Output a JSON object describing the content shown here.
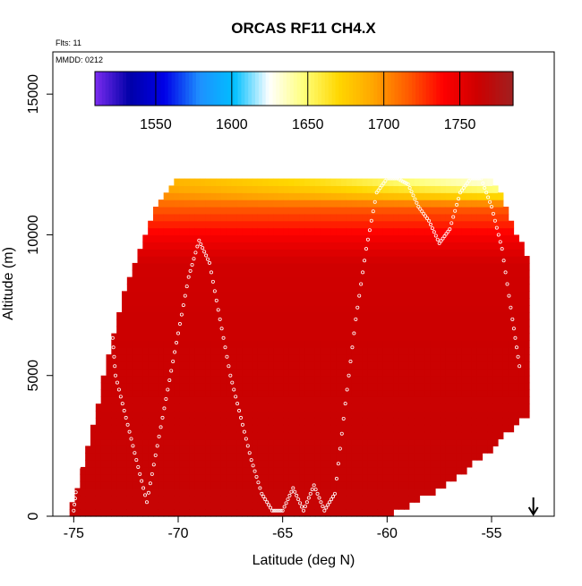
{
  "chart_data": {
    "type": "heatmap",
    "title": "ORCAS RF11 CH4.X",
    "annotations": {
      "flights": "Flts: 11",
      "date": "MMDD: 0212"
    },
    "xlabel": "Latitude (deg N)",
    "ylabel": "Altitude (m)",
    "xlim": [
      -76,
      -52
    ],
    "ylim": [
      0,
      16500
    ],
    "x_ticks": [
      -75,
      -70,
      -65,
      -60,
      -55
    ],
    "x_tick_labels": [
      "-75",
      "-70",
      "-65",
      "-60",
      "-55"
    ],
    "y_ticks": [
      0,
      5000,
      10000,
      15000
    ],
    "y_tick_labels": [
      "0",
      "5000",
      "10000",
      "15000"
    ],
    "colorbar": {
      "range": [
        1510,
        1785
      ],
      "ticks": [
        1550,
        1600,
        1650,
        1700,
        1750
      ],
      "tick_labels": [
        "1550",
        "1600",
        "1650",
        "1700",
        "1750"
      ],
      "colors": [
        "#7b2cf0",
        "#0000a8",
        "#0000e8",
        "#1e90ff",
        "#00bfff",
        "#ffffff",
        "#ffff7a",
        "#ffd700",
        "#ffa500",
        "#ff5a00",
        "#ff0000",
        "#cc0000",
        "#a02020"
      ]
    },
    "grid": false,
    "legend": "colorbar top",
    "direction_arrow": {
      "latitude": -53,
      "direction": "down"
    },
    "domain": {
      "lat": [
        -75.2,
        -74.5,
        -74,
        -73.5,
        -73,
        -72.5,
        -72,
        -71.5,
        -71,
        -70.5,
        -70,
        -65,
        -60,
        -57,
        -55,
        -54.3,
        -53.8,
        -53.2
      ],
      "bottom": [
        0,
        0,
        0,
        0,
        0,
        0,
        0,
        0,
        0,
        0,
        0,
        0,
        0,
        1200,
        2400,
        2900,
        3300,
        3600
      ],
      "top": [
        200,
        1800,
        3500,
        5200,
        6800,
        8200,
        9200,
        10200,
        11000,
        11700,
        12100,
        12100,
        12100,
        12100,
        12000,
        11000,
        10000,
        9000
      ]
    },
    "vertical_profile": {
      "altitude": [
        0,
        7000,
        9000,
        9500,
        10000,
        10500,
        11000,
        11500,
        12000
      ],
      "value_at_south": [
        1765,
        1762,
        1760,
        1752,
        1742,
        1728,
        1715,
        1705,
        1700
      ],
      "value_at_north": [
        1765,
        1762,
        1760,
        1752,
        1742,
        1728,
        1715,
        1660,
        1630
      ]
    },
    "flight_track": {
      "lat": [
        -75,
        -74.8,
        -74.5,
        -74.3,
        -74,
        -73.8,
        -73.5,
        -73.2,
        -73,
        -72.5,
        -72,
        -71.5,
        -71,
        -70.5,
        -70,
        -69.5,
        -69,
        -68.5,
        -68,
        -67.5,
        -67,
        -66.5,
        -66,
        -65.5,
        -65,
        -64.5,
        -64,
        -63.5,
        -63,
        -62.5,
        -62,
        -61.5,
        -61,
        -60.5,
        -60,
        -59.5,
        -59,
        -58.5,
        -58,
        -57.5,
        -57,
        -56.5,
        -56,
        -55.5,
        -55,
        -54.5,
        -54,
        -53.6
      ],
      "alt": [
        200,
        1500,
        3000,
        4500,
        6000,
        7500,
        8500,
        7000,
        5000,
        3500,
        2000,
        500,
        2500,
        4500,
        6500,
        8500,
        9800,
        9000,
        7000,
        5000,
        3500,
        2000,
        800,
        200,
        200,
        1000,
        200,
        1100,
        200,
        800,
        4000,
        7000,
        9500,
        11500,
        12000,
        12000,
        11800,
        11000,
        10500,
        9700,
        10200,
        11500,
        12000,
        12000,
        11000,
        9500,
        7000,
        5000
      ]
    }
  }
}
